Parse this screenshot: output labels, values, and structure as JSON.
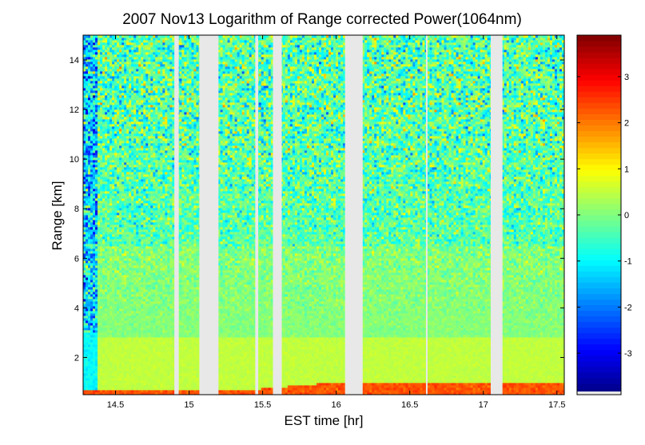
{
  "chart_data": {
    "type": "heatmap",
    "title": "2007 Nov13  Logarithm of Range corrected Power(1064nm)",
    "xlabel": "EST time [hr]",
    "ylabel": "Range [km]",
    "xlim": [
      14.28,
      17.55
    ],
    "ylim": [
      0.5,
      15
    ],
    "x_ticks": [
      "14.5",
      "15",
      "15.5",
      "16",
      "16.5",
      "17",
      "17.5"
    ],
    "y_ticks": [
      "2",
      "4",
      "6",
      "8",
      "10",
      "12",
      "14"
    ],
    "colorbar": {
      "colormap": "jet",
      "range": [
        -3.9,
        3.9
      ],
      "ticks": [
        "-3",
        "-2",
        "-1",
        "0",
        "1",
        "2",
        "3"
      ]
    },
    "data_gaps_hr": [
      [
        14.9,
        14.93
      ],
      [
        15.07,
        15.2
      ],
      [
        15.45,
        15.47
      ],
      [
        15.57,
        15.63
      ],
      [
        16.06,
        16.18
      ],
      [
        16.61,
        16.62
      ],
      [
        17.05,
        17.13
      ]
    ],
    "profile": {
      "near_surface_layer_top_km": [
        0.7,
        1.0
      ],
      "near_surface_value": 2.3,
      "boundary_layer_top_km": 2.8,
      "boundary_layer_value": 0.5,
      "free_troposphere_value": 0.0,
      "upper_noisy_value_mean": -0.3,
      "upper_noise_amplitude": 1.4,
      "early_low_signal_until_hr": 14.37
    },
    "background_color": "#e8e8e8"
  }
}
